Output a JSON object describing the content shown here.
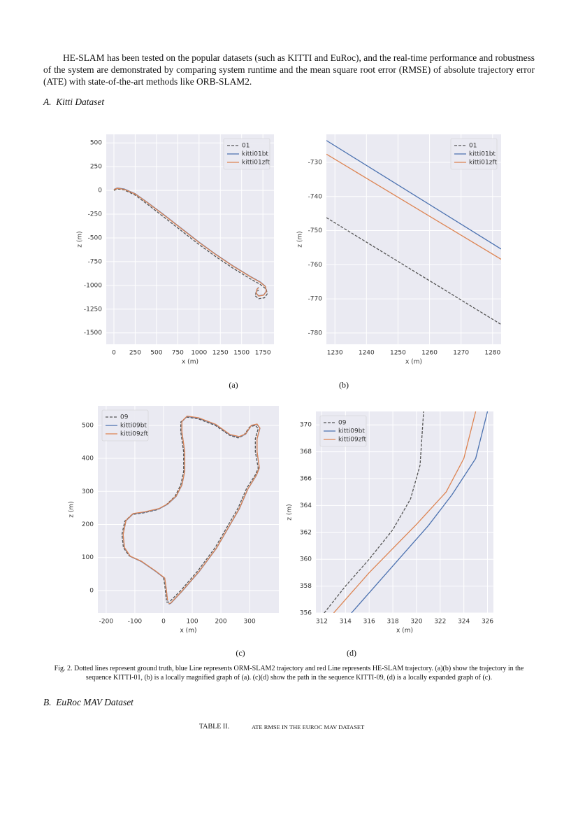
{
  "text": {
    "paragraph": "HE-SLAM has been tested on the popular datasets (such as KITTI and EuRoc), and the real-time performance and robustness of the system are demonstrated by comparing system runtime and the mean square root error (RMSE) of absolute trajectory error (ATE) with state-of-the-art methods like ORB-SLAM2.",
    "section_a": "A.  Kitti Dataset",
    "figure_caption": "Fig. 2. Dotted lines represent ground truth, blue Line represents ORM-SLAM2 trajectory and red Line represents HE-SLAM trajectory. (a)(b) show the trajectory in the sequence KITTI-01, (b) is a locally magnified graph of (a). (c)(d) show the path in the sequence KITTI-09, (d) is a locally expanded graph of (c).",
    "section_b": "B.  EuRoc MAV Dataset",
    "table_label": "TABLE II.",
    "table_title": "ATE RMSE IN THE EUROC MAV DATASET"
  },
  "chart_data": [
    {
      "type": "line",
      "subcaption": "(a)",
      "xlabel": "x (m)",
      "ylabel": "z (m)",
      "xlim": [
        -90,
        1880
      ],
      "ylim": [
        -1620,
        590
      ],
      "xticks": [
        0,
        250,
        500,
        750,
        1000,
        1250,
        1500,
        1750
      ],
      "yticks": [
        500,
        250,
        0,
        -250,
        -500,
        -750,
        -1000,
        -1250,
        -1500
      ],
      "grid": true,
      "legend": "upper right",
      "series": [
        {
          "name": "01",
          "color": "#555555",
          "linestyle": "dashed",
          "x": [
            0,
            40,
            120,
            250,
            400,
            600,
            800,
            1000,
            1200,
            1400,
            1600,
            1720,
            1790,
            1800,
            1770,
            1700,
            1660,
            1670,
            1700
          ],
          "values": [
            0,
            15,
            5,
            -50,
            -150,
            -290,
            -430,
            -570,
            -700,
            -820,
            -930,
            -990,
            -1040,
            -1090,
            -1130,
            -1140,
            -1110,
            -1070,
            -1050
          ]
        },
        {
          "name": "kitti01bt",
          "color": "#4c72b0",
          "linestyle": "solid",
          "x": [
            0,
            40,
            120,
            250,
            400,
            600,
            800,
            1000,
            1200,
            1400,
            1600,
            1720,
            1780,
            1790,
            1760,
            1700,
            1670,
            1680,
            1700
          ],
          "values": [
            10,
            25,
            15,
            -35,
            -130,
            -265,
            -405,
            -545,
            -675,
            -795,
            -905,
            -965,
            -1010,
            -1060,
            -1100,
            -1110,
            -1080,
            -1040,
            -1020
          ]
        },
        {
          "name": "kitti01zft",
          "color": "#dd8452",
          "linestyle": "solid",
          "x": [
            0,
            40,
            120,
            250,
            400,
            600,
            800,
            1000,
            1200,
            1400,
            1600,
            1720,
            1780,
            1790,
            1760,
            1700,
            1670,
            1680,
            1700
          ],
          "values": [
            8,
            22,
            12,
            -38,
            -133,
            -268,
            -408,
            -548,
            -678,
            -798,
            -908,
            -968,
            -1013,
            -1063,
            -1103,
            -1113,
            -1083,
            -1043,
            -1023
          ]
        }
      ]
    },
    {
      "type": "line",
      "subcaption": "(b)",
      "xlabel": "x (m)",
      "ylabel": "z (m)",
      "xlim": [
        1227.3,
        1282.7
      ],
      "ylim": [
        -783.3,
        -721.8
      ],
      "xticks": [
        1230,
        1240,
        1250,
        1260,
        1270,
        1280
      ],
      "yticks": [
        -730,
        -740,
        -750,
        -760,
        -770,
        -780
      ],
      "grid": true,
      "legend": "upper right",
      "series": [
        {
          "name": "01",
          "color": "#555555",
          "linestyle": "dashed",
          "x": [
            1227.3,
            1282.7
          ],
          "values": [
            -746.2,
            -777.5
          ]
        },
        {
          "name": "kitti01bt",
          "color": "#4c72b0",
          "linestyle": "solid",
          "x": [
            1227.3,
            1282.7
          ],
          "values": [
            -723.6,
            -755.4
          ]
        },
        {
          "name": "kitti01zft",
          "color": "#dd8452",
          "linestyle": "solid",
          "x": [
            1227.3,
            1282.7
          ],
          "values": [
            -727.6,
            -758.4
          ]
        }
      ]
    },
    {
      "type": "line",
      "subcaption": "(c)",
      "xlabel": "x (m)",
      "ylabel": "z (m)",
      "xlim": [
        -229,
        402
      ],
      "ylim": [
        -68,
        559
      ],
      "xticks": [
        -200,
        -100,
        0,
        100,
        200,
        300
      ],
      "yticks": [
        0,
        100,
        200,
        300,
        400,
        500
      ],
      "grid": true,
      "legend": "upper left",
      "series": [
        {
          "name": "09",
          "color": "#555555",
          "linestyle": "dashed",
          "x": [
            10,
            20,
            60,
            120,
            180,
            220,
            260,
            290,
            320,
            330,
            320,
            320,
            330,
            320,
            300,
            280,
            260,
            230,
            180,
            120,
            80,
            60,
            60,
            70,
            70,
            60,
            40,
            10,
            -20,
            -70,
            -110,
            -135,
            -145,
            -140,
            -120,
            -80,
            -30,
            0,
            5,
            10
          ],
          "values": [
            -35,
            -35,
            0,
            60,
            130,
            190,
            250,
            310,
            350,
            370,
            420,
            460,
            490,
            500,
            495,
            470,
            462,
            470,
            500,
            520,
            525,
            510,
            480,
            420,
            360,
            320,
            285,
            260,
            245,
            235,
            230,
            210,
            170,
            130,
            105,
            90,
            60,
            40,
            10,
            -30
          ]
        },
        {
          "name": "kitti09bt",
          "color": "#4c72b0",
          "linestyle": "solid",
          "x": [
            18,
            25,
            64,
            124,
            184,
            224,
            264,
            294,
            324,
            334,
            326,
            326,
            336,
            326,
            306,
            286,
            264,
            232,
            182,
            122,
            82,
            64,
            64,
            74,
            74,
            64,
            44,
            14,
            -16,
            -66,
            -106,
            -131,
            -141,
            -136,
            -116,
            -76,
            -26,
            4,
            9,
            14
          ],
          "values": [
            -41,
            -39,
            -3,
            57,
            127,
            187,
            247,
            307,
            349,
            371,
            419,
            459,
            491,
            503,
            499,
            473,
            465,
            471,
            502,
            522,
            527,
            511,
            479,
            419,
            361,
            319,
            285,
            261,
            247,
            237,
            232,
            211,
            169,
            129,
            103,
            87,
            57,
            37,
            7,
            -31
          ]
        },
        {
          "name": "kitti09zft",
          "color": "#dd8452",
          "linestyle": "solid",
          "x": [
            18,
            25,
            64,
            124,
            184,
            224,
            264,
            294,
            324,
            334,
            326,
            326,
            336,
            326,
            306,
            286,
            264,
            232,
            182,
            122,
            82,
            64,
            64,
            74,
            74,
            64,
            44,
            14,
            -16,
            -66,
            -106,
            -131,
            -141,
            -136,
            -116,
            -76,
            -26,
            4,
            9,
            14
          ],
          "values": [
            -40,
            -38,
            -2,
            58,
            128,
            188,
            248,
            308,
            350,
            372,
            420,
            460,
            492,
            504,
            500,
            474,
            466,
            472,
            503,
            523,
            528,
            512,
            480,
            420,
            362,
            320,
            286,
            262,
            248,
            238,
            233,
            212,
            170,
            130,
            104,
            88,
            58,
            38,
            8,
            -30
          ]
        }
      ]
    },
    {
      "type": "line",
      "subcaption": "(d)",
      "xlabel": "x (m)",
      "ylabel": "z (m)",
      "xlim": [
        311.5,
        326.5
      ],
      "ylim": [
        356,
        371
      ],
      "xticks": [
        312,
        314,
        316,
        318,
        320,
        322,
        324,
        326
      ],
      "yticks": [
        356,
        358,
        360,
        362,
        364,
        366,
        368,
        370
      ],
      "grid": true,
      "legend": "upper left",
      "series": [
        {
          "name": "09",
          "color": "#555555",
          "linestyle": "dashed",
          "x": [
            312.2,
            314,
            316,
            318,
            319.5,
            320.3,
            320.6
          ],
          "values": [
            356,
            358,
            360,
            362.2,
            364.5,
            367,
            371
          ]
        },
        {
          "name": "kitti09bt",
          "color": "#4c72b0",
          "linestyle": "solid",
          "x": [
            314.5,
            318,
            321,
            323,
            325,
            326
          ],
          "values": [
            356,
            359.5,
            362.5,
            364.8,
            367.5,
            371
          ]
        },
        {
          "name": "kitti09zft",
          "color": "#dd8452",
          "linestyle": "solid",
          "x": [
            313,
            316,
            320,
            322.5,
            324,
            325
          ],
          "values": [
            356,
            359,
            362.6,
            365,
            367.5,
            371
          ]
        }
      ]
    }
  ]
}
